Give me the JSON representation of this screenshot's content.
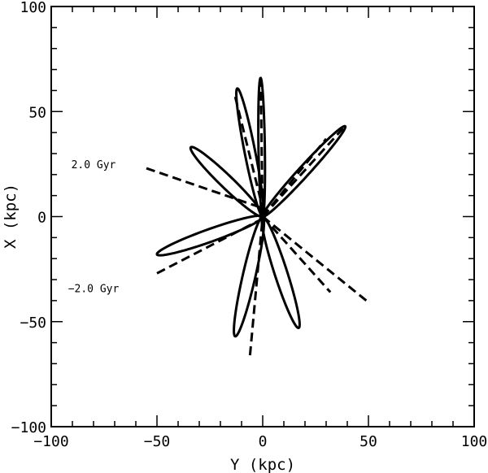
{
  "chart_data": {
    "type": "line",
    "title": "",
    "xlabel": "Y (kpc)",
    "ylabel": "X (kpc)",
    "xlim": [
      -100,
      100
    ],
    "ylim": [
      -100,
      100
    ],
    "xticks": [
      -100,
      -50,
      0,
      50,
      100
    ],
    "yticks": [
      -100,
      -50,
      0,
      50,
      100
    ],
    "xtick_labels": [
      "−100",
      "−50",
      "0",
      "50",
      "100"
    ],
    "ytick_labels": [
      "−100",
      "−50",
      "0",
      "50",
      "100"
    ],
    "grid": false,
    "legend": "none",
    "line_color": "#000000",
    "series": [
      {
        "style": "solid",
        "loops": [
          {
            "center": [
              0,
              0
            ],
            "apex": [
              -1,
              66
            ],
            "half_width": 1.5
          },
          {
            "center": [
              0,
              0
            ],
            "apex": [
              -12,
              61
            ],
            "half_width": 2.5
          },
          {
            "center": [
              0,
              0
            ],
            "apex": [
              -34,
              33
            ],
            "half_width": 3
          },
          {
            "center": [
              0,
              0
            ],
            "apex": [
              39,
              43
            ],
            "half_width": 2.5
          },
          {
            "center": [
              0,
              0
            ],
            "apex": [
              -50,
              -18
            ],
            "half_width": 3
          },
          {
            "center": [
              0,
              0
            ],
            "apex": [
              -13,
              -57
            ],
            "half_width": 3
          },
          {
            "center": [
              0,
              0
            ],
            "apex": [
              17,
              -53
            ],
            "half_width": 3
          }
        ]
      },
      {
        "style": "dashed",
        "segments": [
          {
            "from": [
              -13,
              57
            ],
            "to": [
              0,
              4
            ]
          },
          {
            "from": [
              -1,
              66
            ],
            "to": [
              0,
              0
            ]
          },
          {
            "from": [
              -55,
              23
            ],
            "to": [
              0,
              4
            ]
          },
          {
            "from": [
              0,
              0
            ],
            "to": [
              30,
              37
            ]
          },
          {
            "from": [
              0,
              0
            ],
            "to": [
              38,
              42
            ]
          },
          {
            "from": [
              -50,
              -27
            ],
            "to": [
              -2,
              -2
            ]
          },
          {
            "from": [
              -6,
              -66
            ],
            "to": [
              0,
              0
            ]
          },
          {
            "from": [
              0,
              0
            ],
            "to": [
              49,
              -40
            ]
          },
          {
            "from": [
              0,
              0
            ],
            "to": [
              32,
              -36
            ]
          }
        ]
      }
    ],
    "annotations": [
      {
        "text": "2.0 Gyr",
        "at": [
          -80,
          25
        ]
      },
      {
        "text": "−2.0 Gyr",
        "at": [
          -80,
          -34
        ]
      }
    ]
  }
}
